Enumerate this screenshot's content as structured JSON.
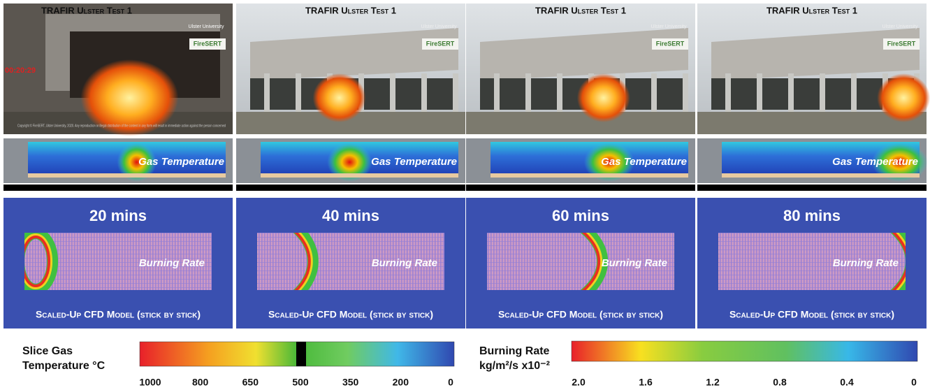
{
  "panels": [
    {
      "photo_title": "TRAFIR Ulster Test 1",
      "timestamp": "00:20:29",
      "logo_university": "Ulster University",
      "logo_lab": "FireSERT",
      "copyright": "Copyright © FireSERT, Ulster University, 2020. Any reproduction or illegal distribution of the content in any form will result in immediate action against the person concerned",
      "gas_label": "Gas Temperature",
      "time": "20 mins",
      "burning_label": "Burning Rate",
      "model_label": "Scaled-Up CFD Model (stick by stick)"
    },
    {
      "photo_title": "TRAFIR Ulster Test 1",
      "logo_university": "Ulster University",
      "logo_lab": "FireSERT",
      "gas_label": "Gas Temperature",
      "time": "40 mins",
      "burning_label": "Burning Rate",
      "model_label": "Scaled-Up CFD Model (stick by stick)"
    },
    {
      "photo_title": "TRAFIR Ulster Test 1",
      "logo_university": "Ulster University",
      "logo_lab": "FireSERT",
      "gas_label": "Gas Temperature",
      "time": "60 mins",
      "burning_label": "Burning Rate",
      "model_label": "Scaled-Up CFD Model (stick by stick)"
    },
    {
      "photo_title": "TRAFIR Ulster Test 1",
      "logo_university": "Ulster University",
      "logo_lab": "FireSERT",
      "gas_label": "Gas Temperature",
      "time": "80 mins",
      "burning_label": "Burning Rate",
      "model_label": "Scaled-Up CFD Model (stick by stick)"
    }
  ],
  "legends": [
    {
      "title": [
        "Slice Gas",
        "Temperature °C"
      ],
      "ticks": [
        1000,
        800,
        650,
        500,
        350,
        200,
        0
      ]
    },
    {
      "title": [
        "Burning Rate",
        "kg/m²/s x10⁻²"
      ],
      "lim": [
        2,
        0
      ],
      "ticks": [
        {
          "value": 2,
          "label": "2.0"
        },
        {
          "value": 1.6,
          "label": "1.6"
        },
        {
          "value": 1.2,
          "label": "1.2"
        },
        {
          "value": 0.8,
          "label": "0.8"
        },
        {
          "value": 0.4,
          "label": "0.4"
        },
        0
      ]
    }
  ]
}
